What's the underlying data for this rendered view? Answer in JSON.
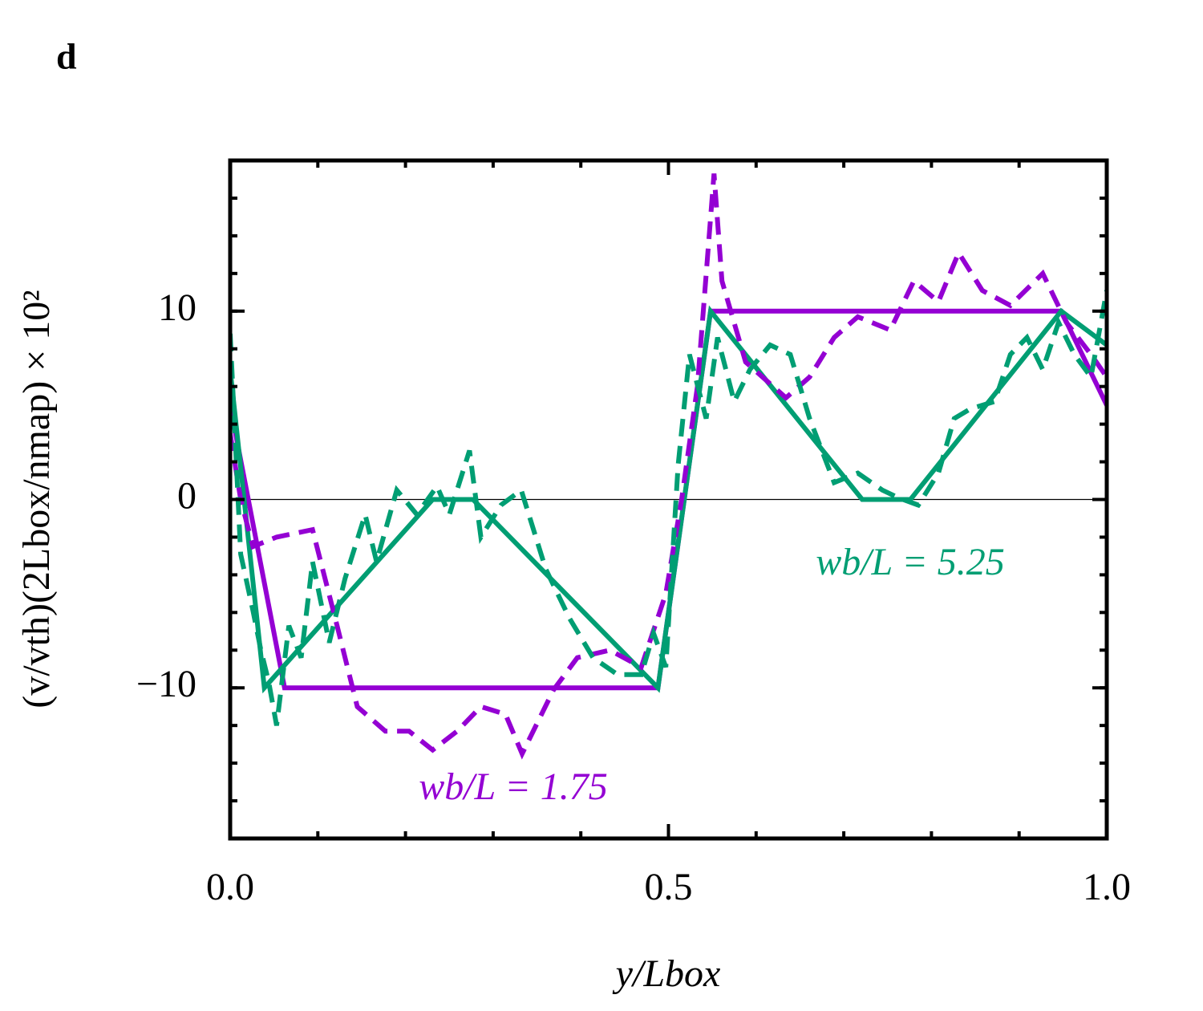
{
  "chart_data": {
    "type": "line",
    "panel_label": "d",
    "xlabel": "y/Lbox",
    "ylabel": "(v/vth)(2Lbox/nmap) × 10²",
    "xlim": [
      0,
      1
    ],
    "ylim": [
      -18,
      18
    ],
    "xticks": [
      {
        "value": 0,
        "label": "0.0"
      },
      0.5,
      {
        "value": 1,
        "label": "1.0"
      }
    ],
    "yticks": [
      {
        "value": -10,
        "label": "−10"
      },
      0,
      10
    ],
    "hline": 0,
    "series": [
      {
        "name": "wb/L = 1.75",
        "color": "#9400d3",
        "linestyle": "solid",
        "x": [
          0,
          0.062,
          0.488,
          0.548,
          0.948,
          1.0
        ],
        "values": [
          5,
          -10,
          -10,
          10,
          10,
          5
        ]
      },
      {
        "name": "wb/L = 5.25",
        "color": "#009e73",
        "linestyle": "solid",
        "x": [
          0,
          0.039,
          0.231,
          0.277,
          0.488,
          0.548,
          0.721,
          0.776,
          0.948,
          1.0
        ],
        "values": [
          6.9,
          -10,
          0,
          0,
          -10,
          10,
          0,
          0,
          10,
          8.2
        ]
      },
      {
        "name": "wb/L = 1.75",
        "color": "#9400d3",
        "linestyle": "dashed",
        "x": [
          0,
          0.012,
          0.026,
          0.053,
          0.094,
          0.122,
          0.145,
          0.177,
          0.204,
          0.231,
          0.259,
          0.286,
          0.314,
          0.333,
          0.369,
          0.396,
          0.433,
          0.469,
          0.497,
          0.515,
          0.533,
          0.552,
          0.561,
          0.588,
          0.634,
          0.661,
          0.689,
          0.716,
          0.753,
          0.78,
          0.808,
          0.831,
          0.858,
          0.89,
          0.927,
          0.954,
          0.982,
          1.0
        ],
        "values": [
          3.5,
          0,
          -2.5,
          -2,
          -1.6,
          -6.7,
          -11,
          -12.3,
          -12.3,
          -13.3,
          -12.3,
          -11,
          -11.4,
          -13.5,
          -10.1,
          -8.4,
          -8,
          -8.9,
          -5,
          0,
          6,
          17.3,
          11.6,
          7.3,
          5.4,
          6.5,
          8.6,
          9.7,
          9,
          11.6,
          10.5,
          13.1,
          11.1,
          10.3,
          12,
          9.4,
          7.7,
          6.5
        ]
      },
      {
        "name": "wb/L = 5.25",
        "color": "#009e73",
        "linestyle": "dashed",
        "x": [
          0,
          0.012,
          0.026,
          0.035,
          0.044,
          0.053,
          0.067,
          0.081,
          0.094,
          0.113,
          0.131,
          0.154,
          0.167,
          0.19,
          0.213,
          0.236,
          0.25,
          0.273,
          0.286,
          0.309,
          0.332,
          0.36,
          0.387,
          0.414,
          0.442,
          0.469,
          0.483,
          0.497,
          0.511,
          0.524,
          0.543,
          0.556,
          0.575,
          0.593,
          0.616,
          0.639,
          0.661,
          0.689,
          0.716,
          0.744,
          0.762,
          0.785,
          0.808,
          0.826,
          0.844,
          0.872,
          0.89,
          0.909,
          0.927,
          0.945,
          0.963,
          0.982,
          1.0
        ],
        "values": [
          8.8,
          -2.9,
          -5.9,
          -8,
          -9.7,
          -12,
          -6.7,
          -8.4,
          -3.3,
          -7.6,
          -4.2,
          -0.8,
          -3.3,
          0.5,
          -0.8,
          0.7,
          -0.8,
          2.6,
          -2,
          -0.3,
          0.5,
          -3.7,
          -6.3,
          -8.4,
          -9.3,
          -9.3,
          -7.1,
          -8.9,
          1.8,
          7.7,
          4.3,
          8.6,
          5.2,
          6.9,
          8.2,
          7.7,
          4.3,
          0.9,
          1.4,
          0.5,
          0.1,
          -0.3,
          1.4,
          4.3,
          4.8,
          5.2,
          7.7,
          8.6,
          6.9,
          9.4,
          7.7,
          6.5,
          11.1
        ]
      }
    ],
    "annotations": [
      {
        "text": "wb/L = 1.75",
        "color": "#9400d3"
      },
      {
        "text": "wb/L = 5.25",
        "color": "#009e73"
      }
    ]
  }
}
